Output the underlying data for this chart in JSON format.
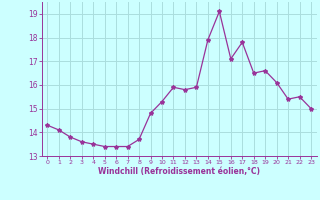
{
  "x": [
    0,
    1,
    2,
    3,
    4,
    5,
    6,
    7,
    8,
    9,
    10,
    11,
    12,
    13,
    14,
    15,
    16,
    17,
    18,
    19,
    20,
    21,
    22,
    23
  ],
  "y": [
    14.3,
    14.1,
    13.8,
    13.6,
    13.5,
    13.4,
    13.4,
    13.4,
    13.7,
    14.8,
    15.3,
    15.9,
    15.8,
    15.9,
    17.9,
    19.1,
    17.1,
    17.8,
    16.5,
    16.6,
    16.1,
    15.4,
    15.5,
    15.0
  ],
  "line_color": "#993399",
  "marker": "*",
  "marker_size": 3,
  "bg_color": "#ccffff",
  "grid_color": "#aadddd",
  "xlabel": "Windchill (Refroidissement éolien,°C)",
  "xlabel_color": "#993399",
  "tick_color": "#993399",
  "ylim": [
    13.0,
    19.5
  ],
  "yticks": [
    13,
    14,
    15,
    16,
    17,
    18,
    19
  ],
  "xlim": [
    -0.5,
    23.5
  ],
  "xticks": [
    0,
    1,
    2,
    3,
    4,
    5,
    6,
    7,
    8,
    9,
    10,
    11,
    12,
    13,
    14,
    15,
    16,
    17,
    18,
    19,
    20,
    21,
    22,
    23
  ]
}
